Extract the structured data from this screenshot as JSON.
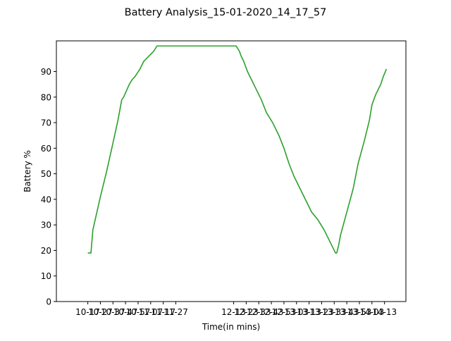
{
  "chart_data": {
    "type": "line",
    "title": "Battery Analysis_15-01-2020_14_17_57",
    "xlabel": "Time(in mins)",
    "ylabel": "Battery %",
    "ylim": [
      0,
      102
    ],
    "yticks": [
      0,
      10,
      20,
      30,
      40,
      50,
      60,
      70,
      80,
      90
    ],
    "xlim": [
      -2.5,
      25.3
    ],
    "xtick_labels": [
      "10-17",
      "10-27",
      "10-37",
      "10-47",
      "10-57",
      "11-07",
      "11-17",
      "11-27",
      "12-13",
      "12-23",
      "12-33",
      "12-43",
      "12-53",
      "13-03",
      "13-13",
      "13-23",
      "13-33",
      "13-43",
      "13-53",
      "14-03",
      "14-13"
    ],
    "xtick_positions": [
      0,
      1,
      2,
      3,
      4,
      5,
      6,
      7,
      11.6,
      12.6,
      13.6,
      14.6,
      15.6,
      16.6,
      17.6,
      18.6,
      19.6,
      20.6,
      21.6,
      22.6,
      23.6
    ],
    "grid": false,
    "series": [
      {
        "color": "#2ca02c",
        "x": [
          0,
          0.25,
          0.3,
          0.4,
          1,
          1.5,
          2,
          2.4,
          2.55,
          2.7,
          2.85,
          3.3,
          3.55,
          3.75,
          4.15,
          4.45,
          4.85,
          5.25,
          5.5,
          7,
          11.8,
          12.05,
          12.2,
          12.4,
          12.7,
          13.0,
          13.4,
          13.8,
          14.2,
          14.7,
          15.2,
          15.6,
          16.0,
          16.4,
          16.8,
          17.3,
          17.8,
          18.3,
          18.8,
          19.2,
          19.5,
          19.7,
          19.8,
          19.95,
          20.1,
          20.6,
          21.1,
          21.5,
          22.0,
          22.4,
          22.6,
          22.9,
          23.3,
          23.5,
          23.75
        ],
        "y": [
          19,
          19,
          22,
          28,
          41,
          51,
          62,
          71,
          75,
          79,
          80,
          85,
          87,
          88,
          91,
          94,
          96,
          98,
          100,
          100,
          100,
          98,
          96,
          94,
          90,
          87,
          83,
          79,
          74,
          70,
          65,
          60,
          54,
          49,
          45,
          40,
          35,
          32,
          28,
          24,
          21,
          19,
          19,
          22,
          26,
          35,
          44,
          54,
          63,
          71,
          77,
          81,
          85,
          88,
          91
        ]
      }
    ]
  }
}
